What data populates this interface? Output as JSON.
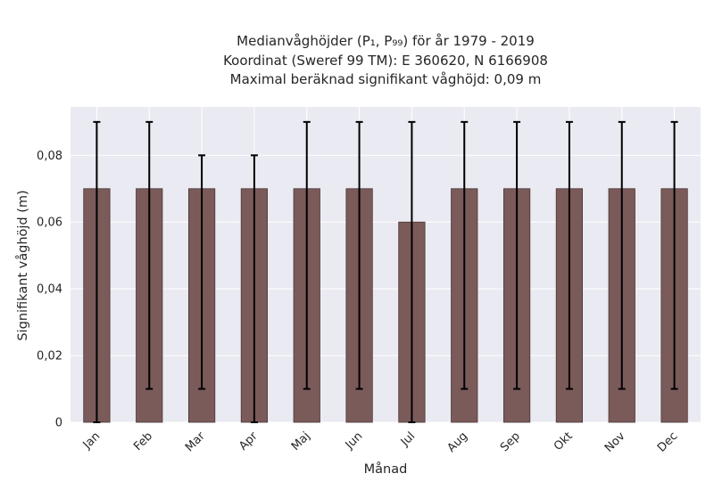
{
  "chart_data": {
    "type": "bar",
    "title_lines": [
      "Medianvåghöjder (P₁, P₉₉) för år 1979 - 2019",
      "Koordinat (Sweref 99 TM): E 360620, N 6166908",
      "Maximal beräknad signifikant våghöjd: 0,09 m"
    ],
    "xlabel": "Månad",
    "ylabel": "Signifikant våghöjd (m)",
    "categories": [
      "Jan",
      "Feb",
      "Mar",
      "Apr",
      "Maj",
      "Jun",
      "Jul",
      "Aug",
      "Sep",
      "Okt",
      "Nov",
      "Dec"
    ],
    "values": [
      0.07,
      0.07,
      0.07,
      0.07,
      0.07,
      0.07,
      0.06,
      0.07,
      0.07,
      0.07,
      0.07,
      0.07
    ],
    "err_low": [
      0.0,
      0.01,
      0.01,
      0.0,
      0.01,
      0.01,
      0.0,
      0.01,
      0.01,
      0.01,
      0.01,
      0.01
    ],
    "err_high": [
      0.09,
      0.09,
      0.08,
      0.08,
      0.09,
      0.09,
      0.09,
      0.09,
      0.09,
      0.09,
      0.09,
      0.09
    ],
    "ylim": [
      0,
      0.0945
    ],
    "yticks": [
      0,
      0.02,
      0.04,
      0.06,
      0.08
    ],
    "ytick_labels": [
      "0",
      "0,02",
      "0,04",
      "0,06",
      "0,08"
    ],
    "grid": true,
    "colors": {
      "bar": "#7b5a5a",
      "bar_edge": "#4a3636",
      "plot_bg": "#eaeaf2",
      "grid": "#ffffff",
      "error_bar": "#000000"
    }
  }
}
